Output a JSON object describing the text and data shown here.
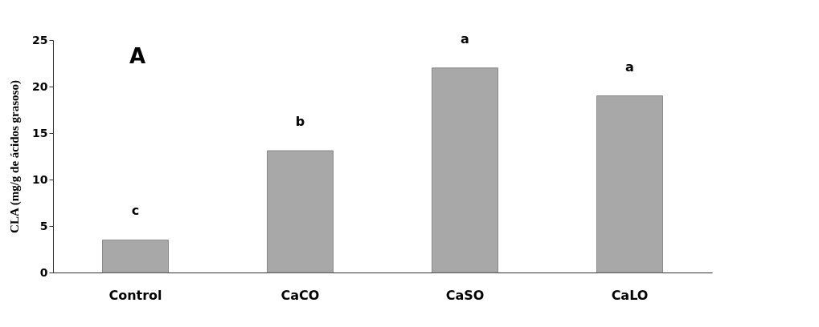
{
  "chart_data": {
    "type": "bar",
    "ylabel": "CLA (mg/g de ácidos grasoso)",
    "categories": [
      "Control",
      "CaCO",
      "CaSO",
      "CaLO"
    ],
    "values": [
      3.5,
      13.1,
      22.0,
      19.0
    ],
    "color": "#a8a8a8",
    "ylim": [
      0,
      25
    ],
    "yticks": [
      0,
      5,
      10,
      15,
      20,
      25
    ],
    "grid": false,
    "value_labels": [
      "c",
      "b",
      "a",
      "a"
    ],
    "annotations": [
      "A"
    ]
  }
}
